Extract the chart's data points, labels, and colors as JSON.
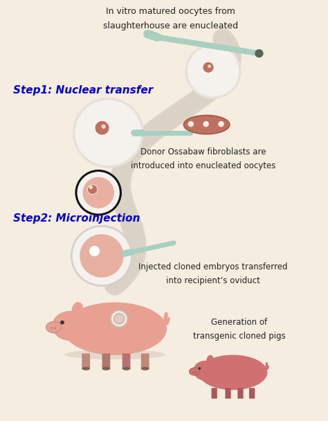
{
  "background_color": "#f5ede0",
  "title_text1": "In vitro matured oocytes from",
  "title_text2": "slaughterhouse are enucleated",
  "step1_label": "Step1: Nuclear transfer",
  "step1_color": "#0000cc",
  "step2_label": "Step2: Microinjection",
  "step2_color": "#0000cc",
  "desc1_text1": "Donor Ossabaw fibroblasts are",
  "desc1_text2": "introduced into enucleated oocytes",
  "desc2_text1": "Injected cloned embryos transferred",
  "desc2_text2": "into recipient’s oviduct",
  "desc3_text1": "Generation of",
  "desc3_text2": "transgenic cloned pigs",
  "oocyte_fill": "#f0ece0",
  "oocyte_edge": "#ffffff",
  "cell_fill": "#e8b0a0",
  "nucleus_fill": "#c07060",
  "needle_color": "#a8d0c0",
  "fibroblast_fill": "#c07060",
  "arrow_color": "#c8beb0",
  "pig_fill": "#e8a090",
  "pig_small_fill": "#d07070",
  "embryo_border": "#111111"
}
